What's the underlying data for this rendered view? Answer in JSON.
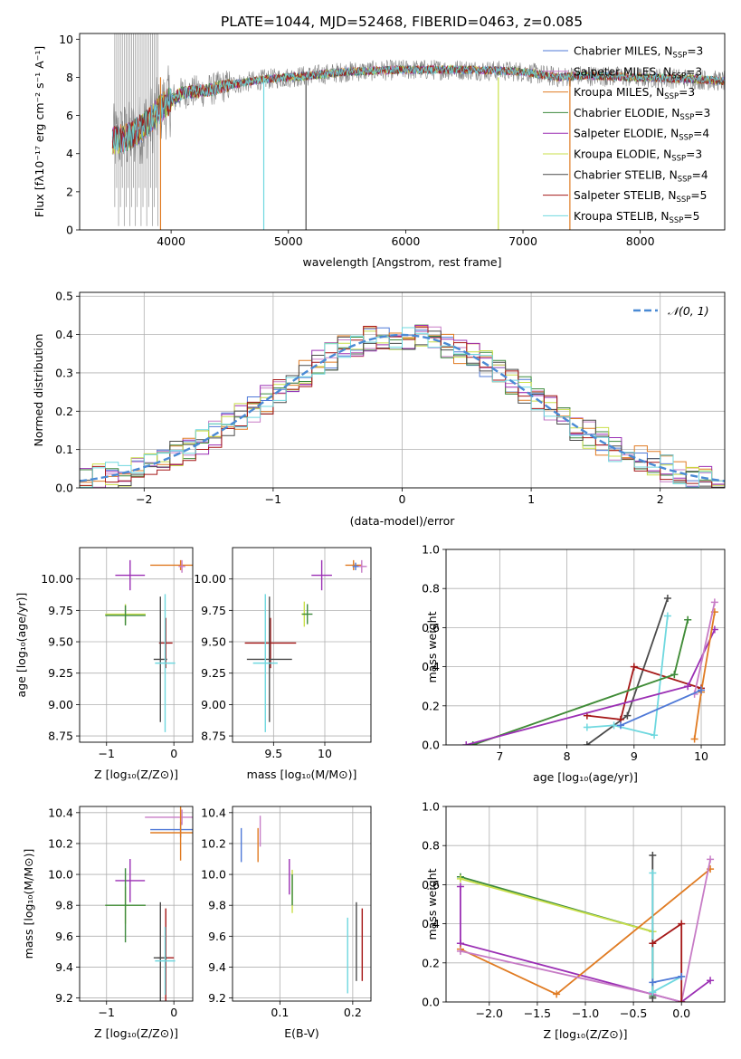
{
  "title": "PLATE=1044, MJD=52468, FIBERID=0463, z=0.085",
  "colors": {
    "chabrier_miles": "#4f79d7",
    "salpeter_miles": "#c77cc6",
    "kroupa_miles": "#e07b22",
    "chabrier_elodie": "#3d8a3d",
    "salpeter_elodie": "#9b2fb4",
    "kroupa_elodie": "#c9df4a",
    "chabrier_stelib": "#4a4a4a",
    "salpeter_stelib": "#a51717",
    "kroupa_stelib": "#6fd8df",
    "data": "#808080",
    "normal": "#4a8ad4"
  },
  "chart_data": [
    {
      "id": "spectrum",
      "type": "line",
      "xlabel": "wavelength [Angstrom, rest frame]",
      "ylabel": "Flux [fλ10⁻¹⁷ erg cm⁻² s⁻¹ A⁻¹]",
      "xlim": [
        3220,
        8720
      ],
      "ylim": [
        0,
        10.3
      ],
      "xticks": [
        4000,
        5000,
        6000,
        7000,
        8000
      ],
      "yticks": [
        0,
        2,
        4,
        6,
        8,
        10
      ],
      "legend_position": "right",
      "legend": [
        "Chabrier MILES, N_SSP=3",
        "Salpeter MILES, N_SSP=3",
        "Kroupa MILES, N_SSP=3",
        "Chabrier ELODIE, N_SSP=3",
        "Salpeter ELODIE, N_SSP=4",
        "Kroupa ELODIE, N_SSP=3",
        "Chabrier STELIB, N_SSP=4",
        "Salpeter STELIB, N_SSP=5",
        "Kroupa STELIB, N_SSP=5"
      ],
      "continuum": {
        "x": [
          3500,
          3650,
          3800,
          3950,
          4100,
          4300,
          4500,
          4800,
          5000,
          5200,
          5500,
          6000,
          6500,
          7000,
          7300,
          7500,
          8000,
          8500,
          8700
        ],
        "y": [
          4.7,
          4.9,
          5.6,
          6.6,
          7.2,
          7.3,
          7.6,
          7.9,
          8.0,
          8.1,
          8.3,
          8.4,
          8.4,
          8.3,
          8.0,
          8.1,
          8.0,
          7.9,
          7.8
        ]
      },
      "spikes_x": [
        3910,
        4790,
        5150,
        6790,
        7400
      ]
    },
    {
      "id": "residuals",
      "type": "line",
      "xlabel": "(data-model)/error",
      "ylabel": "Normed distribution",
      "xlim": [
        -2.5,
        2.5
      ],
      "ylim": [
        0,
        0.51
      ],
      "xticks": [
        -2,
        -1,
        0,
        1,
        2
      ],
      "yticks": [
        0.0,
        0.1,
        0.2,
        0.3,
        0.4,
        0.5
      ],
      "legend": [
        "𝒩(0, 1)"
      ],
      "legend_position": "top-right",
      "grid": true
    },
    {
      "id": "age_vs_Z",
      "type": "scatter",
      "xlabel": "Z [log₁₀(Z/Z⊙)]",
      "ylabel": "age  [log₁₀(age/yr)]",
      "xlim": [
        -1.4,
        0.28
      ],
      "ylim": [
        8.7,
        10.25
      ],
      "xticks": [
        -1,
        0
      ],
      "yticks": [
        8.75,
        9.0,
        9.25,
        9.5,
        9.75,
        10.0
      ],
      "points": [
        {
          "model": "kroupa_miles",
          "x": 0.1,
          "y": 10.11,
          "xerr": 0.45,
          "yerr": 0.04
        },
        {
          "model": "salpeter_miles",
          "x": 0.12,
          "y": 10.1,
          "xerr": 0.05,
          "yerr": 0.05
        },
        {
          "model": "salpeter_elodie",
          "x": -0.65,
          "y": 10.03,
          "xerr": 0.22,
          "yerr": 0.12
        },
        {
          "model": "kroupa_elodie",
          "x": -0.72,
          "y": 9.72,
          "xerr": 0.3,
          "yerr": 0.08
        },
        {
          "model": "chabrier_elodie",
          "x": -0.72,
          "y": 9.71,
          "xerr": 0.3,
          "yerr": 0.08
        },
        {
          "model": "salpeter_stelib",
          "x": -0.12,
          "y": 9.49,
          "xerr": 0.1,
          "yerr": 0.2
        },
        {
          "model": "chabrier_stelib",
          "x": -0.2,
          "y": 9.36,
          "xerr": 0.1,
          "yerr": 0.5
        },
        {
          "model": "kroupa_stelib",
          "x": -0.13,
          "y": 9.33,
          "xerr": 0.15,
          "yerr": 0.55
        }
      ]
    },
    {
      "id": "age_vs_mass",
      "type": "scatter",
      "xlabel": "mass [log₁₀(M/M⊙)]",
      "ylabel": "",
      "xlim": [
        9.1,
        10.45
      ],
      "ylim": [
        8.7,
        10.25
      ],
      "xticks": [
        9.5,
        10.0
      ],
      "yticks": [
        8.75,
        9.0,
        9.25,
        9.5,
        9.75,
        10.0
      ],
      "points": [
        {
          "model": "kroupa_miles",
          "x": 10.28,
          "y": 10.11,
          "xerr": 0.08,
          "yerr": 0.04
        },
        {
          "model": "salpeter_miles",
          "x": 10.36,
          "y": 10.1,
          "xerr": 0.05,
          "yerr": 0.05
        },
        {
          "model": "chabrier_miles",
          "x": 10.3,
          "y": 10.1,
          "xerr": 0.03,
          "yerr": 0.03
        },
        {
          "model": "salpeter_elodie",
          "x": 9.97,
          "y": 10.03,
          "xerr": 0.1,
          "yerr": 0.12
        },
        {
          "model": "kroupa_elodie",
          "x": 9.8,
          "y": 9.72,
          "xerr": 0.03,
          "yerr": 0.1
        },
        {
          "model": "chabrier_elodie",
          "x": 9.83,
          "y": 9.72,
          "xerr": 0.05,
          "yerr": 0.08
        },
        {
          "model": "salpeter_stelib",
          "x": 9.47,
          "y": 9.49,
          "xerr": 0.25,
          "yerr": 0.2
        },
        {
          "model": "chabrier_stelib",
          "x": 9.46,
          "y": 9.36,
          "xerr": 0.22,
          "yerr": 0.5
        },
        {
          "model": "kroupa_stelib",
          "x": 9.42,
          "y": 9.33,
          "xerr": 0.12,
          "yerr": 0.55
        }
      ]
    },
    {
      "id": "massweight_vs_age",
      "type": "line",
      "xlabel": "age  [log₁₀(age/yr)]",
      "ylabel": "mass weight",
      "xlim": [
        6.2,
        10.35
      ],
      "ylim": [
        0,
        1.0
      ],
      "xticks": [
        7,
        8,
        9,
        10
      ],
      "yticks": [
        0.0,
        0.2,
        0.4,
        0.6,
        0.8,
        1.0
      ],
      "grid": true,
      "series": [
        {
          "model": "chabrier_stelib",
          "x": [
            8.3,
            8.9,
            9.5
          ],
          "y": [
            0.0,
            0.15,
            0.75
          ]
        },
        {
          "model": "salpeter_stelib",
          "x": [
            8.3,
            8.8,
            9.0,
            10.0
          ],
          "y": [
            0.15,
            0.13,
            0.4,
            0.29
          ]
        },
        {
          "model": "kroupa_stelib",
          "x": [
            8.3,
            8.7,
            9.3,
            9.5
          ],
          "y": [
            0.09,
            0.1,
            0.05,
            0.66
          ]
        },
        {
          "model": "kroupa_elodie",
          "x": [
            6.6,
            9.6,
            9.8
          ],
          "y": [
            0.0,
            0.36,
            0.64
          ]
        },
        {
          "model": "chabrier_elodie",
          "x": [
            6.6,
            9.6,
            9.8
          ],
          "y": [
            0.0,
            0.36,
            0.64
          ]
        },
        {
          "model": "salpeter_elodie",
          "x": [
            6.5,
            9.8,
            10.2
          ],
          "y": [
            0.0,
            0.3,
            0.59
          ]
        },
        {
          "model": "kroupa_miles",
          "x": [
            9.9,
            10.0,
            10.2
          ],
          "y": [
            0.03,
            0.27,
            0.68
          ]
        },
        {
          "model": "salpeter_miles",
          "x": [
            9.9,
            10.2
          ],
          "y": [
            0.26,
            0.73
          ]
        },
        {
          "model": "chabrier_miles",
          "x": [
            8.8,
            10.0
          ],
          "y": [
            0.1,
            0.28
          ]
        }
      ]
    },
    {
      "id": "mass_vs_Z",
      "type": "scatter",
      "xlabel": "Z [log₁₀(Z/Z⊙)]",
      "ylabel": "mass [log₁₀(M/M⊙)]",
      "xlim": [
        -1.4,
        0.28
      ],
      "ylim": [
        9.18,
        10.44
      ],
      "xticks": [
        -1,
        0
      ],
      "yticks": [
        9.2,
        9.4,
        9.6,
        9.8,
        10.0,
        10.2,
        10.4
      ],
      "points": [
        {
          "model": "salpeter_miles",
          "x": 0.12,
          "y": 10.37,
          "xerr": 0.55,
          "yerr": 0.05
        },
        {
          "model": "chabrier_miles",
          "x": 0.1,
          "y": 10.29,
          "xerr": 0.45,
          "yerr": 0.05
        },
        {
          "model": "kroupa_miles",
          "x": 0.1,
          "y": 10.27,
          "xerr": 0.45,
          "yerr": 0.18
        },
        {
          "model": "salpeter_elodie",
          "x": -0.65,
          "y": 9.96,
          "xerr": 0.22,
          "yerr": 0.14
        },
        {
          "model": "kroupa_elodie",
          "x": -0.72,
          "y": 9.8,
          "xerr": 0.3,
          "yerr": 0.12
        },
        {
          "model": "chabrier_elodie",
          "x": -0.72,
          "y": 9.8,
          "xerr": 0.3,
          "yerr": 0.24
        },
        {
          "model": "salpeter_stelib",
          "x": -0.12,
          "y": 9.46,
          "xerr": 0.12,
          "yerr": 0.32
        },
        {
          "model": "chabrier_stelib",
          "x": -0.2,
          "y": 9.46,
          "xerr": 0.1,
          "yerr": 0.36
        },
        {
          "model": "kroupa_stelib",
          "x": -0.13,
          "y": 9.44,
          "xerr": 0.15,
          "yerr": 0.22
        }
      ]
    },
    {
      "id": "mass_vs_EBV",
      "type": "scatter",
      "xlabel": "E(B-V)",
      "ylabel": "",
      "xlim": [
        0.035,
        0.225
      ],
      "ylim": [
        9.18,
        10.44
      ],
      "xticks": [
        0.1,
        0.2
      ],
      "yticks": [
        9.2,
        9.4,
        9.6,
        9.8,
        10.0,
        10.2,
        10.4
      ],
      "bars": [
        {
          "model": "chabrier_miles",
          "x": 0.047,
          "ylo": 10.08,
          "yhi": 10.3
        },
        {
          "model": "kroupa_miles",
          "x": 0.07,
          "ylo": 10.08,
          "yhi": 10.3
        },
        {
          "model": "salpeter_miles",
          "x": 0.073,
          "ylo": 10.18,
          "yhi": 10.38
        },
        {
          "model": "salpeter_elodie",
          "x": 0.113,
          "ylo": 9.87,
          "yhi": 10.1
        },
        {
          "model": "kroupa_elodie",
          "x": 0.117,
          "ylo": 9.75,
          "yhi": 10.03
        },
        {
          "model": "chabrier_elodie",
          "x": 0.117,
          "ylo": 9.8,
          "yhi": 10.0
        },
        {
          "model": "kroupa_stelib",
          "x": 0.193,
          "ylo": 9.23,
          "yhi": 9.72
        },
        {
          "model": "chabrier_stelib",
          "x": 0.205,
          "ylo": 9.31,
          "yhi": 9.82
        },
        {
          "model": "salpeter_stelib",
          "x": 0.213,
          "ylo": 9.31,
          "yhi": 9.78
        }
      ]
    },
    {
      "id": "massweight_vs_Z",
      "type": "line",
      "xlabel": "Z [log₁₀(Z/Z⊙)]",
      "ylabel": "mass weight",
      "xlim": [
        -2.45,
        0.45
      ],
      "ylim": [
        0,
        1.0
      ],
      "xticks": [
        -2.0,
        -1.5,
        -1.0,
        -0.5,
        0.0
      ],
      "yticks": [
        0.0,
        0.2,
        0.4,
        0.6,
        0.8,
        1.0
      ],
      "grid": true,
      "series": [
        {
          "model": "chabrier_elodie",
          "x": [
            -2.3,
            -0.3,
            -0.3
          ],
          "y": [
            0.64,
            0.36,
            0.03
          ]
        },
        {
          "model": "kroupa_elodie",
          "x": [
            -2.3,
            -0.3
          ],
          "y": [
            0.63,
            0.36
          ]
        },
        {
          "model": "salpeter_elodie",
          "x": [
            -2.3,
            -2.3,
            -2.3,
            0.0,
            0.3
          ],
          "y": [
            0.59,
            0.3,
            0.3,
            0.0,
            0.11
          ]
        },
        {
          "model": "kroupa_miles",
          "x": [
            -2.3,
            -1.3,
            0.3
          ],
          "y": [
            0.27,
            0.04,
            0.68
          ]
        },
        {
          "model": "salpeter_miles",
          "x": [
            -2.3,
            -0.3,
            0.0,
            0.3
          ],
          "y": [
            0.26,
            0.04,
            0.0,
            0.73
          ]
        },
        {
          "model": "chabrier_stelib",
          "x": [
            -0.3,
            -0.3
          ],
          "y": [
            0.75,
            0.02
          ]
        },
        {
          "model": "kroupa_stelib",
          "x": [
            -0.3,
            -0.3,
            0.0
          ],
          "y": [
            0.66,
            0.05,
            0.13
          ]
        },
        {
          "model": "salpeter_stelib",
          "x": [
            -0.3,
            0.0,
            0.0
          ],
          "y": [
            0.3,
            0.4,
            0.0
          ]
        },
        {
          "model": "chabrier_miles",
          "x": [
            -0.3,
            0.0
          ],
          "y": [
            0.1,
            0.13
          ]
        }
      ]
    }
  ]
}
